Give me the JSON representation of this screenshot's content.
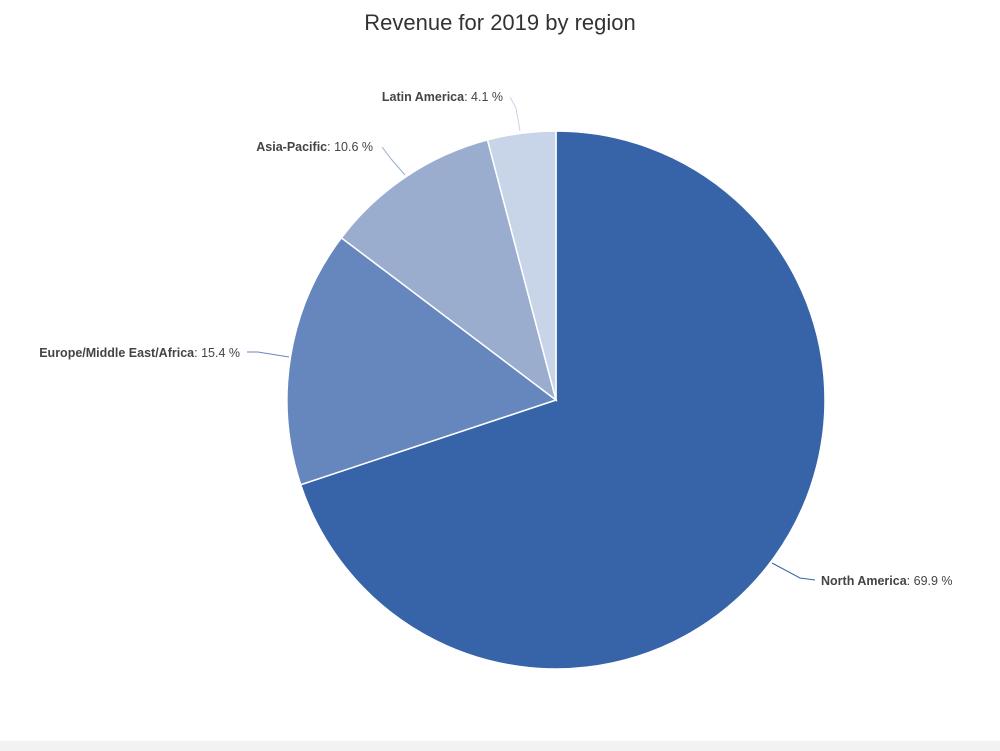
{
  "chart_data": {
    "type": "pie",
    "title": "Revenue for 2019 by region",
    "unit": "%",
    "slices": [
      {
        "name": "North America",
        "value": 69.9,
        "color": "#3764a8"
      },
      {
        "name": "Europe/Middle East/Africa",
        "value": 15.4,
        "color": "#6687bd"
      },
      {
        "name": "Asia-Pacific",
        "value": 10.6,
        "color": "#9aadcf"
      },
      {
        "name": "Latin America",
        "value": 4.1,
        "color": "#c8d4e8"
      }
    ]
  }
}
